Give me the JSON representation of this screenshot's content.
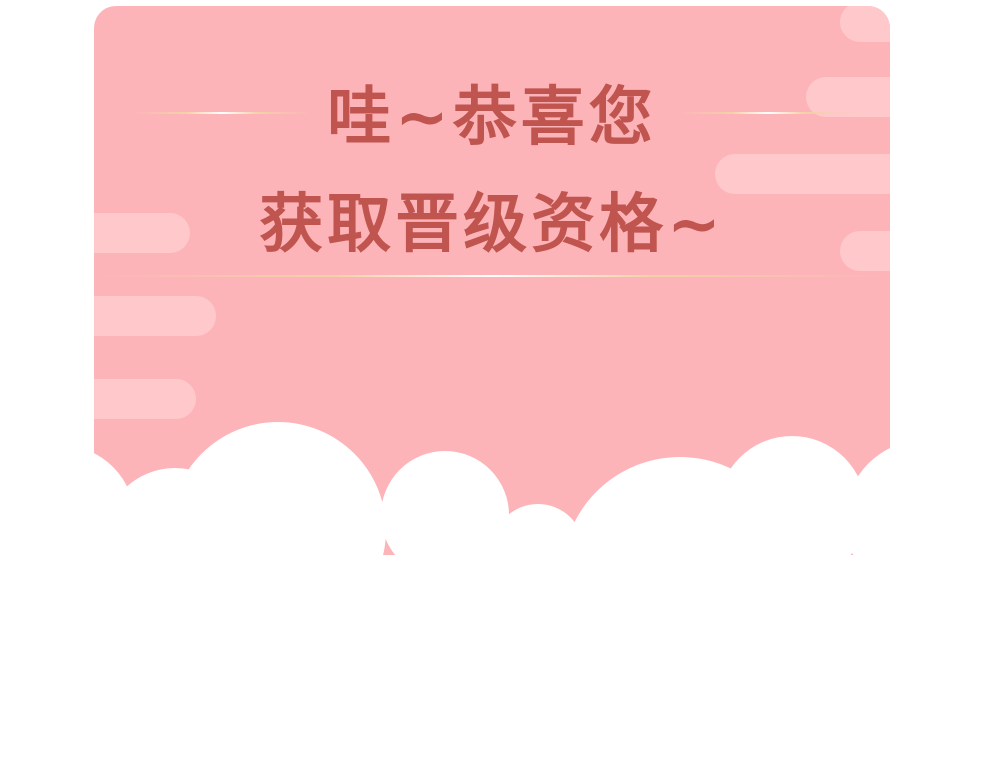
{
  "card": {
    "title_line_1": "哇~恭喜您",
    "title_line_2": "获取晋级资格~"
  },
  "colors": {
    "card_background": "#fdb4b8",
    "streak": "#ffc8ca",
    "title_text": "#c0544f",
    "divider_line": "#f2d2a8",
    "cloud": "#ffffff",
    "page_background": "#ffffff"
  }
}
